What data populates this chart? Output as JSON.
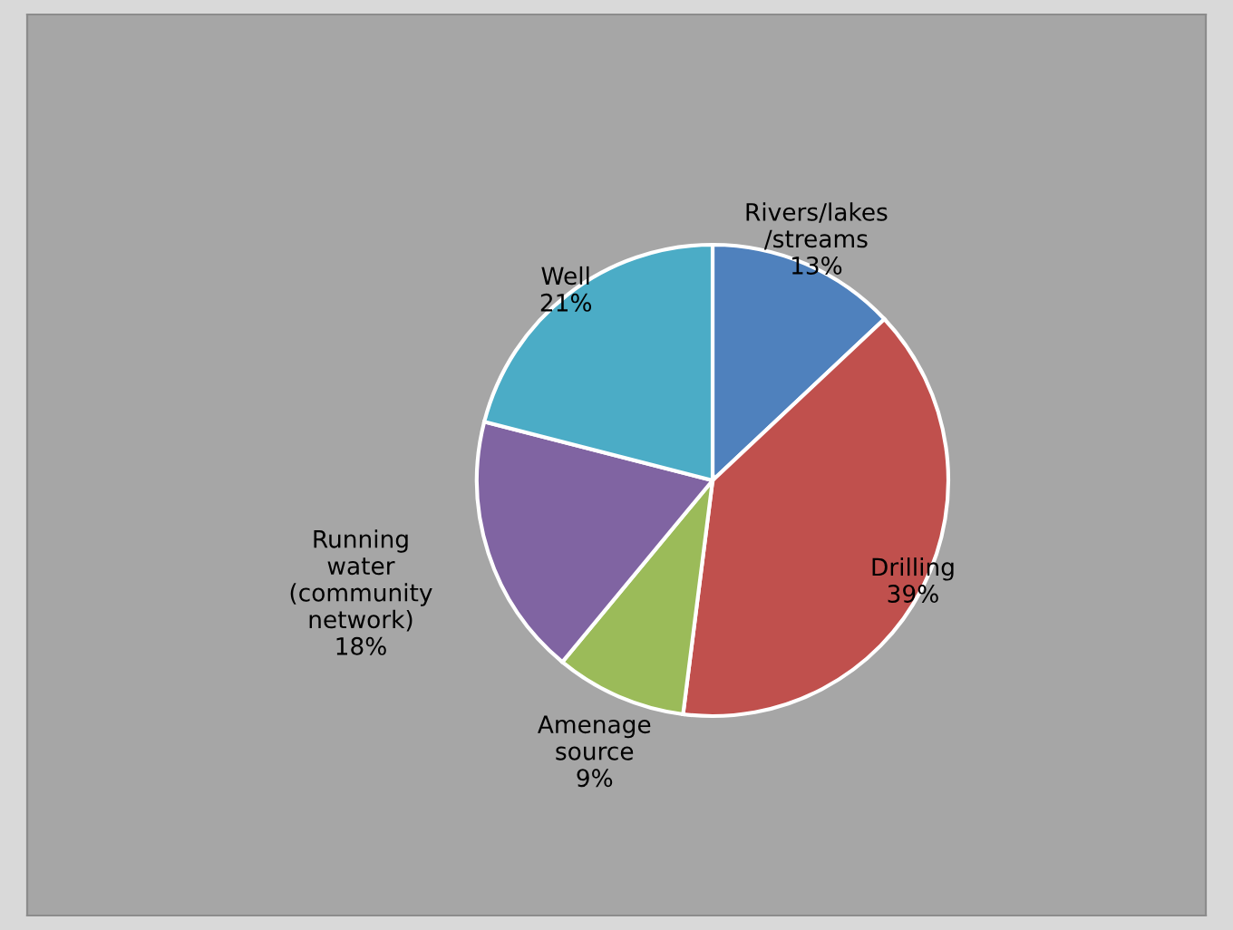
{
  "chart_data": {
    "type": "pie",
    "categories": [
      "Rivers/lakes\n/streams",
      "Drilling",
      "Amenage\nsource",
      "Running\nwater\n(community\nnetwork)",
      "Well"
    ],
    "values": [
      13,
      39,
      9,
      18,
      21
    ],
    "value_labels": [
      "13%",
      "39%",
      "9%",
      "18%",
      "21%"
    ],
    "colors": [
      "#4f81bd",
      "#c0504d",
      "#9bbb59",
      "#8064a2",
      "#4bacc6"
    ]
  }
}
